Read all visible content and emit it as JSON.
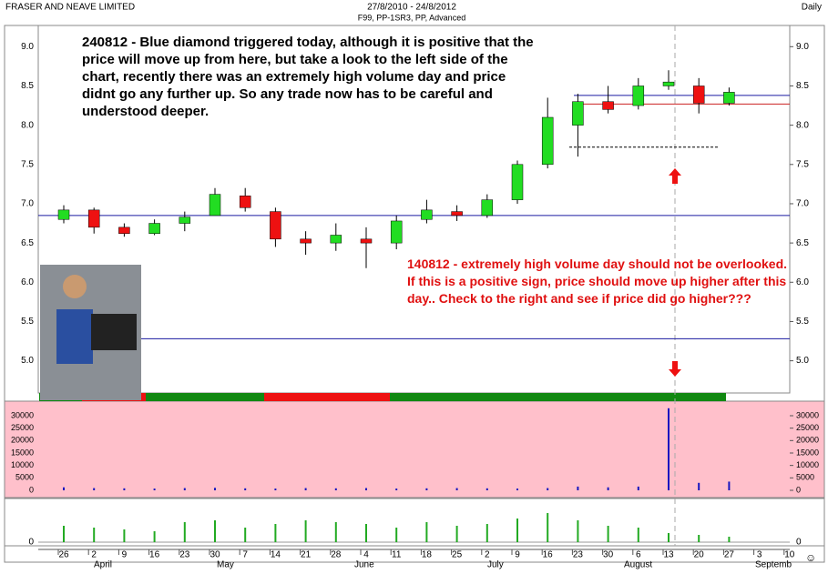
{
  "chart_data": {
    "type": "candlestick",
    "title": "FRASER AND NEAVE  LIMITED",
    "date_range": "27/8/2010 - 24/8/2012",
    "subtitle": "F99, PP-1SR3, PP, Advanced",
    "period": "Daily",
    "categories": [
      "26",
      "2",
      "9",
      "16",
      "23",
      "30",
      "7",
      "14",
      "21",
      "28",
      "4",
      "11",
      "18",
      "25",
      "2",
      "9",
      "16",
      "23",
      "30",
      "6",
      "13",
      "20",
      "27",
      "3",
      "10"
    ],
    "months": [
      "April",
      "May",
      "June",
      "July",
      "August",
      "Septemb"
    ],
    "open": [
      6.8,
      6.92,
      6.7,
      6.62,
      6.75,
      6.85,
      7.1,
      6.9,
      6.55,
      6.5,
      6.55,
      6.5,
      6.8,
      6.9,
      6.85,
      7.05,
      7.5,
      8.0,
      8.3,
      8.25,
      8.5,
      8.5,
      8.28,
      null,
      null
    ],
    "high": [
      6.98,
      6.95,
      6.75,
      6.8,
      6.9,
      7.2,
      7.2,
      6.95,
      6.65,
      6.75,
      6.7,
      6.85,
      7.05,
      6.98,
      7.12,
      7.55,
      8.35,
      8.4,
      8.5,
      8.6,
      8.7,
      8.6,
      8.48,
      null,
      null
    ],
    "low": [
      6.75,
      6.62,
      6.58,
      6.6,
      6.65,
      6.85,
      6.9,
      6.45,
      6.35,
      6.4,
      6.18,
      6.42,
      6.75,
      6.78,
      6.82,
      7.0,
      7.45,
      7.6,
      8.15,
      8.2,
      8.45,
      8.15,
      8.25,
      null,
      null
    ],
    "close": [
      6.92,
      6.7,
      6.62,
      6.75,
      6.83,
      7.12,
      6.95,
      6.55,
      6.5,
      6.6,
      6.5,
      6.78,
      6.92,
      6.85,
      7.05,
      7.5,
      8.1,
      8.3,
      8.2,
      8.5,
      8.55,
      8.28,
      8.42,
      null,
      null
    ],
    "up_color": "#22dd22",
    "down_color": "#ee1111",
    "ylim": [
      4.59,
      9.27
    ],
    "yticks": [
      {
        "value": 5,
        "label": "5.0"
      },
      {
        "value": 5.5,
        "label": "5.5"
      },
      {
        "value": 6,
        "label": "6.0"
      },
      {
        "value": 6.5,
        "label": "6.5"
      },
      {
        "value": 7,
        "label": "7.0"
      },
      {
        "value": 7.5,
        "label": "7.5"
      },
      {
        "value": 8,
        "label": "8.0"
      },
      {
        "value": 8.5,
        "label": "8.5"
      },
      {
        "value": 9,
        "label": "9.0"
      }
    ],
    "reference_lines": [
      {
        "value": 6.85,
        "color": "#1a1aa0"
      },
      {
        "value": 5.28,
        "color": "#1a1aa0"
      },
      {
        "value": 8.38,
        "color": "#1a1aa0"
      },
      {
        "value": 8.27,
        "color": "#cc2222"
      }
    ],
    "stop_level": 7.72,
    "volume": [
      1200,
      900,
      800,
      700,
      900,
      1000,
      800,
      700,
      900,
      800,
      900,
      700,
      800,
      900,
      800,
      700,
      900,
      1500,
      1200,
      1500,
      33000,
      3000,
      3500,
      null,
      null
    ],
    "volume_ylim": [
      -2930,
      35850
    ],
    "volume_yticks": [
      0,
      5000,
      10000,
      15000,
      20000,
      25000,
      30000
    ],
    "indicator": [
      4500,
      4000,
      3500,
      3000,
      5500,
      6000,
      4000,
      5000,
      6000,
      5500,
      5000,
      4000,
      5500,
      4500,
      5000,
      6500,
      8000,
      6000,
      4500,
      4000,
      2500,
      2000,
      1500,
      null,
      null
    ],
    "indicator_ylim": [
      -1000,
      12000
    ],
    "indicator_yticks": [
      0
    ],
    "annotations": [
      "240812 - Blue diamond triggered today, although it is positive that the price will move up from here, but take a look to the left side of the chart, recently there was an extremely high volume day and price didnt go any further up. So any trade now has to be careful and understood deeper.",
      "140812 - extremely high volume day should not be overlooked. If this is a positive sign, price should move up higher after this day.. Check to the right and see if price did go higher???"
    ]
  }
}
